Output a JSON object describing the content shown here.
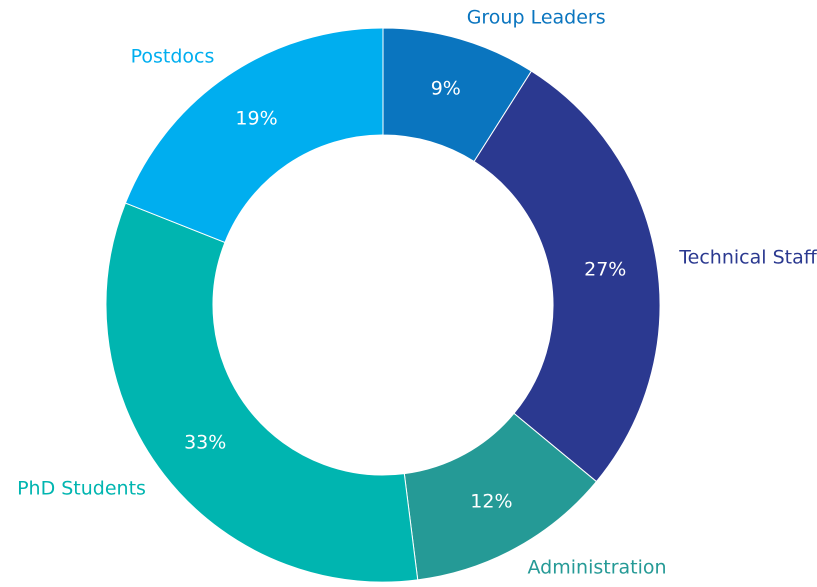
{
  "chart_data": {
    "type": "donut",
    "categories": [
      "Group Leaders",
      "Technical Staff",
      "Administration",
      "PhD Students",
      "Postdocs"
    ],
    "values": [
      9,
      27,
      12,
      33,
      19
    ],
    "value_labels": [
      "9%",
      "27%",
      "12%",
      "33%",
      "19%"
    ],
    "colors": [
      "#0a75bf",
      "#2b3990",
      "#259a96",
      "#00b5b0",
      "#00aeef"
    ]
  }
}
